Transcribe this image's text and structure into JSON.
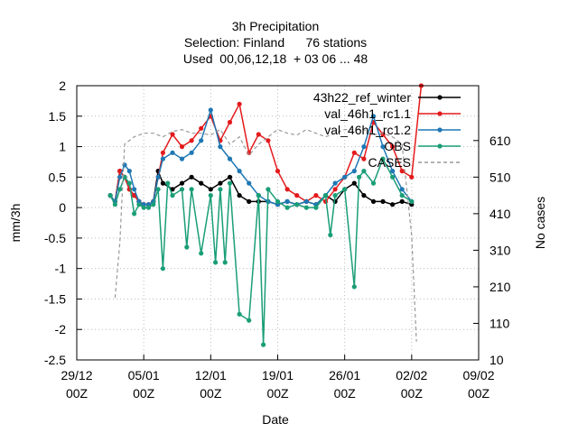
{
  "chart_data": {
    "type": "line",
    "title": [
      "3h Precipitation",
      "Selection: Finland      76 stations",
      "Used  00,06,12,18  + 03 06 ... 48"
    ],
    "xlabel": "Date",
    "ylabel": "mm/3h",
    "y2label": "No cases",
    "xlim": [
      "2021-12-29 00Z",
      "2022-02-09 00Z"
    ],
    "ylim": [
      -2.5,
      2
    ],
    "y2lim": [
      10,
      760
    ],
    "xticks": [
      "29/12",
      "05/01",
      "12/01",
      "19/01",
      "26/01",
      "02/02",
      "09/02"
    ],
    "xtick_sub": "00Z",
    "yticks": [
      "2",
      "1.5",
      "1",
      "0.5",
      "0",
      "-0.5",
      "-1",
      "-1.5",
      "-2",
      "-2.5"
    ],
    "y2ticks": [
      "610",
      "510",
      "410",
      "310",
      "210",
      "110",
      "10"
    ],
    "grid": true,
    "legend_position": "top-right",
    "legend": [
      {
        "label": "43h22_ref_winter",
        "color": "#000000"
      },
      {
        "label": "val_46h1_rc1.1",
        "color": "#e41a1c"
      },
      {
        "label": "val_46h1_rc1.2",
        "color": "#1f78b4"
      },
      {
        "label": "OBS",
        "color": "#1a9e77"
      },
      {
        "label": "CASES",
        "color": "#999999"
      }
    ],
    "series": [
      {
        "name": "43h22_ref_winter",
        "color": "#000000",
        "x_days": [
          3.5,
          4,
          4.5,
          5,
          5.5,
          6,
          6.5,
          7,
          7.5,
          8,
          8.5,
          9,
          10,
          11,
          12,
          13,
          14,
          15,
          16,
          17,
          18,
          19,
          20,
          21,
          22,
          23,
          24,
          25,
          26,
          27,
          28,
          29,
          30,
          31,
          32,
          33,
          34,
          35
        ],
        "values": [
          0.2,
          0.1,
          0.6,
          0.5,
          0.3,
          0.2,
          0.1,
          0.05,
          0.05,
          0.1,
          0.6,
          0.4,
          0.3,
          0.4,
          0.5,
          0.4,
          0.3,
          0.4,
          0.5,
          0.2,
          0.1,
          0.1,
          0.1,
          0.05,
          0.1,
          0.05,
          0.1,
          0.05,
          0.2,
          0.1,
          0.3,
          0.4,
          0.2,
          0.1,
          0.1,
          0.05,
          0.1,
          0.05
        ]
      },
      {
        "name": "val_46h1_rc1.1",
        "color": "#e41a1c",
        "x_days": [
          3.5,
          4,
          4.5,
          5,
          5.5,
          6,
          6.5,
          7,
          7.5,
          8,
          8.5,
          9,
          10,
          11,
          12,
          13,
          14,
          15,
          16,
          17,
          18,
          19,
          20,
          21,
          22,
          23,
          24,
          25,
          26,
          27,
          28,
          29,
          30,
          31,
          32,
          33,
          34,
          35,
          36
        ],
        "values": [
          0.2,
          0.1,
          0.6,
          0.5,
          0.3,
          0.2,
          0.1,
          0.05,
          0.05,
          0.1,
          0.5,
          0.9,
          1.2,
          1.0,
          1.1,
          1.3,
          1.5,
          1.1,
          1.4,
          1.7,
          0.9,
          1.2,
          1.1,
          0.6,
          0.3,
          0.2,
          0.1,
          0.2,
          0.1,
          0.3,
          0.5,
          0.9,
          0.8,
          1.4,
          1.2,
          1.0,
          0.6,
          0.5,
          2.0
        ]
      },
      {
        "name": "val_46h1_rc1.2",
        "color": "#1f78b4",
        "x_days": [
          3.5,
          4,
          4.5,
          5,
          5.5,
          6,
          6.5,
          7,
          7.5,
          8,
          8.5,
          9,
          10,
          11,
          12,
          13,
          14,
          15,
          16,
          17,
          18,
          19,
          20,
          21,
          22,
          23,
          24,
          25,
          26,
          27,
          28,
          29,
          30,
          31,
          32,
          33,
          34,
          35
        ],
        "values": [
          0.2,
          0.1,
          0.5,
          0.7,
          0.6,
          0.3,
          0.1,
          0.05,
          0.05,
          0.1,
          0.5,
          0.8,
          0.9,
          0.8,
          0.9,
          1.1,
          1.6,
          1.0,
          0.8,
          0.6,
          0.4,
          0.2,
          0.1,
          0.05,
          0.1,
          0.05,
          0.1,
          0.05,
          0.2,
          0.4,
          0.5,
          0.6,
          1.0,
          1.5,
          1.0,
          0.6,
          0.3,
          0.1
        ]
      },
      {
        "name": "OBS",
        "color": "#1a9e77",
        "x_days": [
          3.5,
          4,
          4.5,
          5,
          5.5,
          6,
          6.5,
          7,
          7.5,
          8,
          8.5,
          9,
          9.5,
          10,
          11,
          11.5,
          12,
          13,
          14,
          14.5,
          15,
          15.5,
          16,
          17,
          18,
          19,
          19.5,
          20,
          21,
          22,
          23,
          24,
          25,
          26,
          26.5,
          27,
          28,
          29,
          29.5,
          30,
          31,
          32,
          33,
          34,
          35
        ],
        "values": [
          0.2,
          0.05,
          0.3,
          0.5,
          0.4,
          -0.1,
          0.05,
          0.0,
          0.0,
          0.05,
          0.3,
          -1.0,
          0.4,
          0.2,
          0.3,
          -0.65,
          0.3,
          -0.75,
          0.2,
          -0.9,
          0.3,
          -0.9,
          0.4,
          -1.75,
          -1.85,
          0.2,
          -2.25,
          0.3,
          0.1,
          0.0,
          0.05,
          0.0,
          0.0,
          0.2,
          -0.45,
          0.2,
          0.3,
          -1.3,
          0.5,
          0.6,
          0.4,
          0.8,
          0.5,
          0.2,
          0.1
        ]
      },
      {
        "name": "CASES",
        "color": "#999999",
        "x_days": [
          4,
          4.5,
          5,
          6,
          7,
          8,
          9,
          10,
          11,
          12,
          13,
          14,
          15,
          16,
          17,
          18,
          19,
          20,
          21,
          22,
          23,
          24,
          25,
          26,
          27,
          28,
          29,
          30,
          31,
          32,
          33,
          34,
          35,
          35.5
        ],
        "values": [
          180,
          330,
          600,
          620,
          630,
          630,
          620,
          635,
          640,
          630,
          630,
          625,
          640,
          600,
          620,
          570,
          600,
          620,
          640,
          630,
          625,
          640,
          630,
          620,
          630,
          640,
          640,
          640,
          625,
          630,
          620,
          600,
          350,
          60
        ]
      }
    ]
  }
}
